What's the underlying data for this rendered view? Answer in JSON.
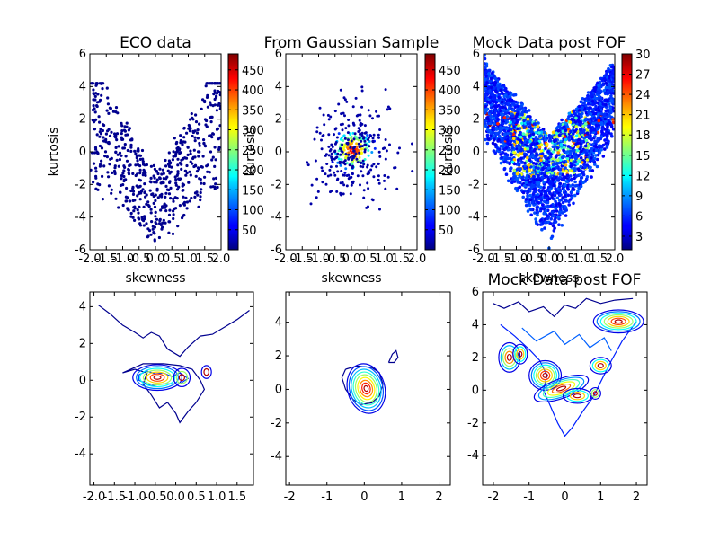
{
  "colors": {
    "background": "#ffffff",
    "axes": "#000000",
    "colormap": "jet"
  },
  "chart_data": [
    {
      "id": "eco",
      "type": "scatter",
      "title": "ECO data",
      "xlabel": "skewness",
      "ylabel": "kurtosis",
      "xlim": [
        -2.0,
        2.0
      ],
      "ylim": [
        -6,
        6
      ],
      "xticks": [
        "-2.0",
        "-1.5",
        "-1.0",
        "-0.5",
        "0.0",
        "0.5",
        "1.0",
        "1.5",
        "2.0"
      ],
      "yticks": [
        "-6",
        "-4",
        "-2",
        "0",
        "2",
        "4",
        "6"
      ],
      "point_count": 620,
      "point_shape": "V-shaped cloud, vertex near (0, -5.5), arms to (-2, 4) and (2, 4.5)",
      "colorbar": {
        "ticks": [
          "50",
          "100",
          "150",
          "200",
          "250",
          "300",
          "350",
          "400",
          "450"
        ],
        "range": [
          0,
          490
        ]
      }
    },
    {
      "id": "gauss",
      "type": "scatter",
      "title": "From Gaussian Sample",
      "xlabel": "skewness",
      "ylabel": "kurtosis",
      "xlim": [
        -2.0,
        2.0
      ],
      "ylim": [
        -6,
        6
      ],
      "xticks": [
        "-2.0",
        "-1.5",
        "-1.0",
        "-0.5",
        "0.0",
        "0.5",
        "1.0",
        "1.5",
        "2.0"
      ],
      "yticks": [
        "-6",
        "-4",
        "-2",
        "0",
        "2",
        "4",
        "6"
      ],
      "point_count": 420,
      "dense_center": [
        0.05,
        0.1
      ],
      "colorbar": {
        "ticks": [
          "50",
          "100",
          "150",
          "200",
          "250",
          "300",
          "350",
          "400",
          "450"
        ],
        "range": [
          0,
          490
        ]
      }
    },
    {
      "id": "mock",
      "type": "scatter",
      "title": "Mock Data post FOF",
      "xlabel": "skewness",
      "ylabel": "kurtosis",
      "xlim": [
        -2.0,
        2.0
      ],
      "ylim": [
        -6,
        6
      ],
      "xticks": [
        "-2.0",
        "-1.5",
        "-1.0",
        "-0.5",
        "0.0",
        "0.5",
        "1.0",
        "1.5",
        "2.0"
      ],
      "yticks": [
        "-6",
        "-4",
        "-2",
        "0",
        "2",
        "4",
        "6"
      ],
      "point_count": 2600,
      "colorbar": {
        "ticks": [
          "3",
          "6",
          "9",
          "12",
          "15",
          "18",
          "21",
          "24",
          "27",
          "30"
        ],
        "range": [
          1,
          30
        ]
      }
    },
    {
      "id": "eco_contour",
      "type": "contour",
      "title": "",
      "xlim": [
        -2.1,
        1.9
      ],
      "ylim": [
        -5.7,
        4.8
      ],
      "xticks": [
        "-2.0",
        "-1.5",
        "-1.0",
        "-0.5",
        "0.0",
        "0.5",
        "1.0",
        "1.5"
      ],
      "xtick_values": [
        -2.0,
        -1.5,
        -1.0,
        -0.5,
        0.0,
        0.5,
        1.0,
        1.5
      ],
      "yticks": [
        "-4",
        "-2",
        "0",
        "2",
        "4"
      ],
      "ytick_values": [
        -4,
        -2,
        0,
        2,
        4
      ],
      "peak": [
        -0.5,
        0.15
      ]
    },
    {
      "id": "gauss_contour",
      "type": "contour",
      "title": "",
      "xlim": [
        -2.1,
        2.3
      ],
      "ylim": [
        -5.7,
        5.8
      ],
      "xticks": [
        "-2",
        "-1",
        "0",
        "1",
        "2"
      ],
      "xtick_values": [
        -2,
        -1,
        0,
        1,
        2
      ],
      "yticks": [
        "-4",
        "-2",
        "0",
        "2",
        "4"
      ],
      "ytick_values": [
        -4,
        -2,
        0,
        2,
        4
      ],
      "peak": [
        0.0,
        0.0
      ]
    },
    {
      "id": "mock_contour",
      "type": "contour",
      "title": "Mock Data post FOF",
      "xlim": [
        -2.3,
        2.3
      ],
      "ylim": [
        -5.8,
        6.0
      ],
      "xticks": [
        "-2",
        "-1",
        "0",
        "1",
        "2"
      ],
      "xtick_values": [
        -2,
        -1,
        0,
        1,
        2
      ],
      "yticks": [
        "-4",
        "-2",
        "0",
        "2",
        "4",
        "6"
      ],
      "ytick_values": [
        -4,
        -2,
        0,
        2,
        4,
        6
      ],
      "peak": [
        1.5,
        4.2
      ]
    }
  ]
}
